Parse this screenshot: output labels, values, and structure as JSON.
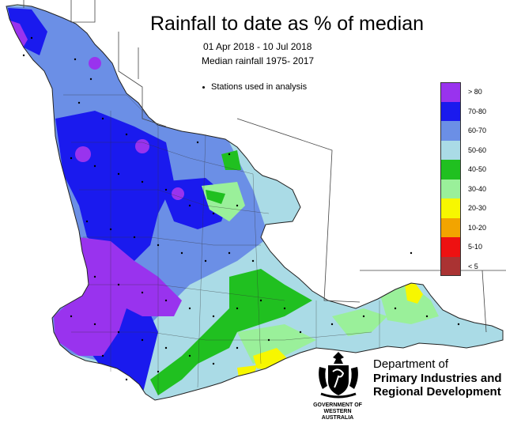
{
  "title": "Rainfall to date as % of median",
  "date_range": "01 Apr 2018 - 10 Jul 2018",
  "median_period": "Median rainfall 1975- 2017",
  "stations_note": "Stations used in analysis",
  "legend": [
    {
      "label": "> 80",
      "color": "#9933ee"
    },
    {
      "label": "70-80",
      "color": "#1a1aee"
    },
    {
      "label": "60-70",
      "color": "#6b8fe6"
    },
    {
      "label": "50-60",
      "color": "#aadbe6"
    },
    {
      "label": "40-50",
      "color": "#20c020"
    },
    {
      "label": "30-40",
      "color": "#9af09a"
    },
    {
      "label": "20-30",
      "color": "#f7f700"
    },
    {
      "label": "10-20",
      "color": "#f2a400"
    },
    {
      "label": "5-10",
      "color": "#ee1111"
    },
    {
      "label": "< 5",
      "color": "#aa3333"
    }
  ],
  "department": {
    "line1": "Department of",
    "line2": "Primary Industries and",
    "line3": "Regional Development"
  },
  "government": {
    "line1": "GOVERNMENT OF",
    "line2": "WESTERN AUSTRALIA"
  }
}
